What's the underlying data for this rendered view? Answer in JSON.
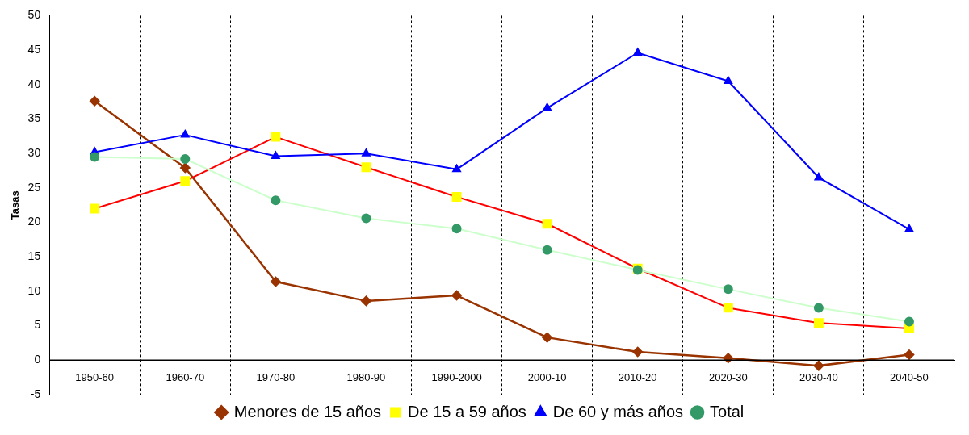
{
  "chart_data": {
    "type": "line",
    "ylabel": "Tasas",
    "categories": [
      "1950-60",
      "1960-70",
      "1970-80",
      "1980-90",
      "1990-2000",
      "2000-10",
      "2010-20",
      "2020-30",
      "2030-40",
      "2040-50"
    ],
    "series": [
      {
        "name": "Menores de 15 años",
        "color": "#993300",
        "marker": "diamond",
        "values": [
          37.6,
          27.9,
          11.4,
          8.6,
          9.4,
          3.3,
          1.2,
          0.3,
          -0.8,
          0.8
        ]
      },
      {
        "name": "De 15 a 59 años",
        "color": "#ff0000",
        "marker": "square",
        "values": [
          22.0,
          26.0,
          32.4,
          28.0,
          23.7,
          19.8,
          13.3,
          7.6,
          5.4,
          4.6
        ]
      },
      {
        "name": "De 60 y más años",
        "color": "#0000ff",
        "marker": "triangle",
        "values": [
          30.2,
          32.7,
          29.6,
          30.0,
          27.7,
          36.6,
          44.6,
          40.5,
          26.5,
          19.0
        ]
      },
      {
        "name": "Total",
        "color": "#ccffcc",
        "marker": "circle",
        "values": [
          29.5,
          29.2,
          23.2,
          20.6,
          19.1,
          16.0,
          13.1,
          10.3,
          7.6,
          5.6
        ]
      }
    ],
    "ylim": [
      -5,
      50
    ],
    "yticks": [
      -5,
      0,
      5,
      10,
      15,
      20,
      25,
      30,
      35,
      40,
      45,
      50
    ],
    "grid": "x",
    "legend": "bottom"
  }
}
